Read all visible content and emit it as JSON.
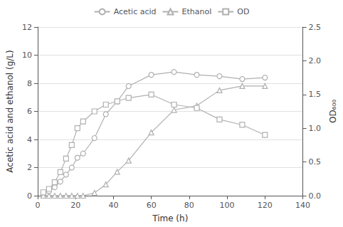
{
  "chart_data": {
    "type": "line",
    "xlabel": "Time (h)",
    "ylabel": "Acetic acid and ethanol (g/L)",
    "y2label": "OD₆₀₀",
    "x": [
      3,
      6,
      9,
      12,
      15,
      18,
      21,
      24,
      30,
      36,
      42,
      48,
      60,
      72,
      84,
      96,
      108,
      120
    ],
    "series": [
      {
        "name": "Acetic acid",
        "color": "#b0b0b0",
        "marker": "circle",
        "values": [
          0.1,
          0.3,
          0.6,
          1.0,
          1.5,
          2.0,
          2.7,
          3.0,
          4.1,
          5.8,
          6.7,
          7.8,
          8.6,
          8.8,
          8.6,
          8.5,
          8.3,
          8.4
        ]
      },
      {
        "name": "Ethanol",
        "color": "#b0b0b0",
        "marker": "triangle",
        "values": [
          0.0,
          0.0,
          0.0,
          0.0,
          0.0,
          0.0,
          0.0,
          0.0,
          0.2,
          0.8,
          1.7,
          2.5,
          4.5,
          6.1,
          6.4,
          7.5,
          7.8,
          7.8
        ]
      },
      {
        "name": "OD",
        "color": "#b0b0b0",
        "marker": "square",
        "axis": "y2",
        "values": [
          0.05,
          0.1,
          0.2,
          0.35,
          0.55,
          0.75,
          1.0,
          1.1,
          1.25,
          1.35,
          1.4,
          1.45,
          1.5,
          1.35,
          1.3,
          1.13,
          1.05,
          0.9
        ]
      }
    ],
    "xlim": [
      0,
      140
    ],
    "xticks": [
      0,
      20,
      40,
      60,
      80,
      100,
      120,
      140
    ],
    "ylim": [
      0,
      12
    ],
    "yticks": [
      0,
      2,
      4,
      6,
      8,
      10,
      12
    ],
    "y2lim": [
      0,
      2.5
    ],
    "y2ticks": [
      {
        "value": 0,
        "label": "0.0"
      },
      0.5,
      {
        "value": 1,
        "label": "1.0"
      },
      1.5,
      {
        "value": 2,
        "label": "2.0"
      },
      2.5
    ],
    "grid": true,
    "legend": "top"
  }
}
